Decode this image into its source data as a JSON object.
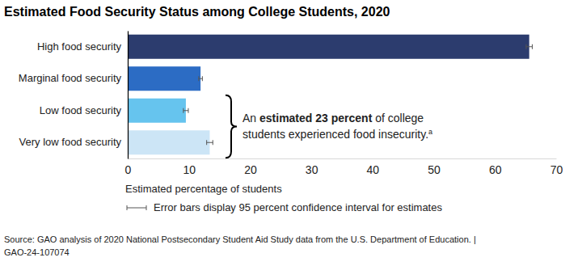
{
  "chart_data": {
    "type": "bar",
    "orientation": "horizontal",
    "title": "Estimated Food Security Status among College Students, 2020",
    "categories": [
      "High food security",
      "Marginal food security",
      "Low food security",
      "Very low food security"
    ],
    "values": [
      65.6,
      11.9,
      9.5,
      13.4
    ],
    "errors": [
      0.5,
      0.3,
      0.4,
      0.5
    ],
    "colors": [
      "#2c3c6e",
      "#2c6cc4",
      "#66c4ee",
      "#cce5f6"
    ],
    "xlim": [
      0,
      70
    ],
    "xticks": [
      0,
      10,
      20,
      30,
      40,
      50,
      60,
      70
    ],
    "xlabel": "Estimated percentage of students",
    "grid": false,
    "error_note": "Error bars display 95 percent confidence interval for estimates",
    "annotation": [
      [
        "An ",
        "estimated 23 percent",
        " of college"
      ],
      [
        "students experienced food insecurity.",
        "a"
      ]
    ],
    "source": [
      "Source: GAO analysis of 2020 National Postsecondary Student Aid Study data from the U.S. Department of Education.  |",
      "GAO-24-107074"
    ]
  }
}
